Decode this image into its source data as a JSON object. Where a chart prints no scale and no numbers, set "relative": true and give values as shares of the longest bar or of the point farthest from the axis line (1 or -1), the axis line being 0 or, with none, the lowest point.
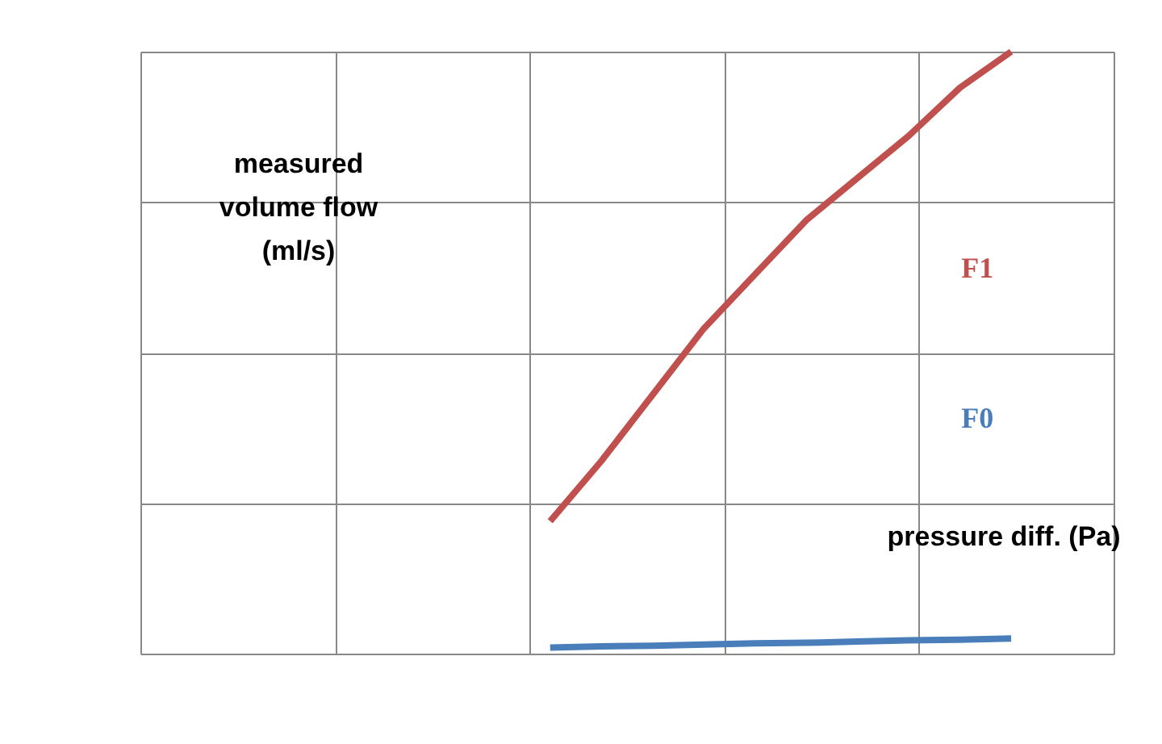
{
  "chart_data": {
    "type": "line",
    "relative": true,
    "xlabel": "pressure diff. (Pa)",
    "ylabel": "measured volume flow (ml/s)",
    "categories": [
      null,
      null,
      null,
      null,
      null,
      null,
      null,
      null,
      null,
      null,
      null,
      null,
      null,
      null,
      null,
      null,
      null,
      null,
      null,
      null
    ],
    "series": [
      {
        "name": "F1",
        "color": "#c0504d",
        "values": [
          null,
          null,
          null,
          null,
          null,
          null,
          null,
          null,
          0.22,
          0.32,
          0.43,
          0.54,
          0.63,
          0.72,
          0.79,
          0.86,
          0.94,
          1.0,
          null,
          null
        ]
      },
      {
        "name": "F0",
        "color": "#4a7ebb",
        "values": [
          null,
          null,
          null,
          null,
          null,
          null,
          null,
          null,
          0.01,
          0.012,
          0.013,
          0.015,
          0.017,
          0.018,
          0.02,
          0.022,
          0.023,
          0.025,
          null,
          null
        ]
      }
    ],
    "grid": true,
    "legend": false,
    "tick_labels": false,
    "line_style": "solid",
    "marker": "none"
  }
}
